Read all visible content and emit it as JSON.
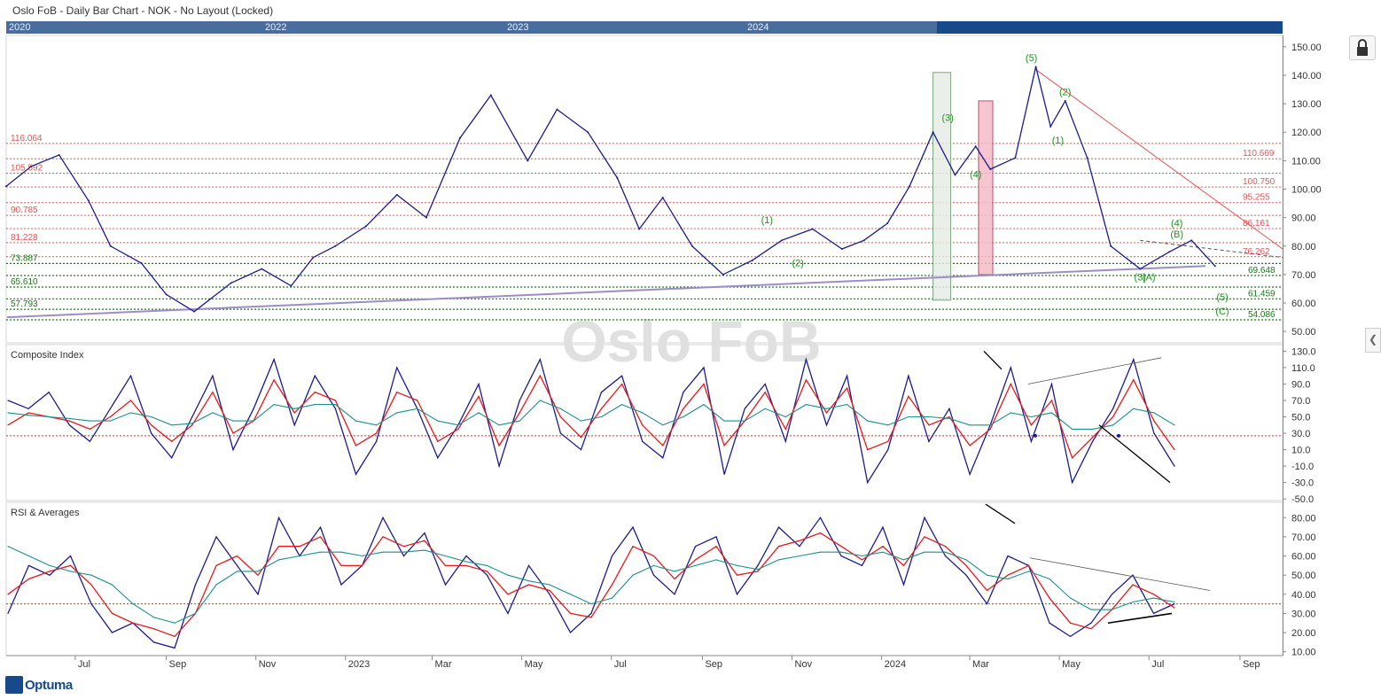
{
  "header": {
    "title": "Oslo FoB - Daily Bar Chart - NOK - No Layout (Locked)"
  },
  "navigator": {
    "years": [
      "2020",
      "2022",
      "2023",
      "2024"
    ]
  },
  "watermark": "Oslo FoB",
  "logo": "Optuma",
  "icons": {
    "lock": "lock-icon",
    "collapse": "chevron-left-icon"
  },
  "colors": {
    "price": "#1c1c8c",
    "signal_red": "#e8191b",
    "signal_teal": "#1a8f8f",
    "res_red": "#e85555",
    "sup_green": "#1a7a1a",
    "trend_purple": "#9c8cc8"
  },
  "chart_data": [
    {
      "type": "line",
      "name": "price",
      "x_ticks": [
        "Jul",
        "Sep",
        "Nov",
        "2023",
        "Mar",
        "May",
        "Jul",
        "Sep",
        "Nov",
        "2024",
        "Mar",
        "May",
        "Jul",
        "Sep"
      ],
      "y_ticks": [
        "150.00",
        "140.00",
        "130.00",
        "120.00",
        "110.00",
        "100.00",
        "90.00",
        "80.00",
        "70.00",
        "60.00",
        "50.00"
      ],
      "ylim": [
        46,
        154
      ],
      "x": [
        "2022-05-15",
        "2022-06-01",
        "2022-06-20",
        "2022-07-10",
        "2022-07-25",
        "2022-08-15",
        "2022-09-01",
        "2022-09-20",
        "2022-10-15",
        "2022-11-05",
        "2022-11-25",
        "2022-12-10",
        "2022-12-25",
        "2023-01-15",
        "2023-02-05",
        "2023-02-25",
        "2023-03-20",
        "2023-04-10",
        "2023-05-05",
        "2023-05-25",
        "2023-06-15",
        "2023-07-05",
        "2023-07-20",
        "2023-08-05",
        "2023-08-25",
        "2023-09-15",
        "2023-10-05",
        "2023-10-25",
        "2023-11-15",
        "2023-12-05",
        "2023-12-20",
        "2024-01-05",
        "2024-01-20",
        "2024-02-05",
        "2024-02-20",
        "2024-03-05",
        "2024-03-15",
        "2024-04-01",
        "2024-04-15",
        "2024-04-25",
        "2024-05-05",
        "2024-05-20",
        "2024-06-05",
        "2024-06-25",
        "2024-07-15",
        "2024-07-30",
        "2024-08-15"
      ],
      "y": [
        101,
        108,
        112,
        96,
        80,
        74,
        63,
        57,
        67,
        72,
        66,
        76,
        80,
        87,
        98,
        90,
        118,
        133,
        110,
        128,
        120,
        104,
        86,
        97,
        80,
        70,
        75,
        82,
        86,
        79,
        82,
        88,
        101,
        120,
        105,
        115,
        107,
        111,
        143,
        122,
        131,
        111,
        80,
        72,
        78,
        82,
        73
      ],
      "levels_red": [
        {
          "value": 116.064,
          "label": "116.064"
        },
        {
          "value": 110.669,
          "label": "110.669"
        },
        {
          "value": 105.592,
          "label": "105.592"
        },
        {
          "value": 100.75,
          "label": "100.750"
        },
        {
          "value": 95.255,
          "label": "95.255"
        },
        {
          "value": 90.785,
          "label": "90.785"
        },
        {
          "value": 86.161,
          "label": "86.161"
        },
        {
          "value": 81.228,
          "label": "81.228"
        },
        {
          "value": 76.262,
          "label": "76.262"
        }
      ],
      "levels_green": [
        {
          "value": 73.887,
          "label": "73.887"
        },
        {
          "value": 69.648,
          "label": "69.648"
        },
        {
          "value": 65.61,
          "label": "65.610"
        },
        {
          "value": 61.459,
          "label": "61.459"
        },
        {
          "value": 57.793,
          "label": "57.793"
        },
        {
          "value": 54.086,
          "label": "54.086"
        }
      ],
      "wave_labels": [
        {
          "text": "(1)",
          "x": "2023-10-15",
          "y": 88
        },
        {
          "text": "(2)",
          "x": "2023-11-05",
          "y": 73
        },
        {
          "text": "(3)",
          "x": "2024-02-15",
          "y": 124
        },
        {
          "text": "(4)",
          "x": "2024-03-05",
          "y": 104
        },
        {
          "text": "(5)",
          "x": "2024-04-12",
          "y": 145
        },
        {
          "text": "(1)",
          "x": "2024-04-30",
          "y": 116
        },
        {
          "text": "(2)",
          "x": "2024-05-05",
          "y": 133
        },
        {
          "text": "(3)",
          "x": "2024-06-25",
          "y": 68
        },
        {
          "text": "(A)",
          "x": "2024-07-01",
          "y": 68
        },
        {
          "text": "(4)",
          "x": "2024-07-20",
          "y": 87
        },
        {
          "text": "(B)",
          "x": "2024-07-20",
          "y": 83
        },
        {
          "text": "(5)",
          "x": "2024-08-20",
          "y": 61
        },
        {
          "text": "(C)",
          "x": "2024-08-20",
          "y": 56
        }
      ]
    },
    {
      "type": "line",
      "name": "Composite Index",
      "title": "Composite Index",
      "y_ticks": [
        "130.0",
        "110.0",
        "90.0",
        "70.0",
        "50.0",
        "30.0",
        "10.0",
        "-10.0",
        "-30.0",
        "-50.0"
      ],
      "ylim": [
        -52,
        138
      ],
      "reference": 27,
      "series": [
        {
          "name": "",
          "values": [
            70,
            60,
            80,
            40,
            20,
            60,
            100,
            30,
            0,
            50,
            100,
            10,
            60,
            120,
            40,
            100,
            60,
            -20,
            20,
            110,
            60,
            0,
            40,
            90,
            -10,
            70,
            120,
            30,
            10,
            80,
            100,
            20,
            0,
            80,
            110,
            -20,
            60,
            90,
            20,
            120,
            40,
            100,
            -30,
            10,
            100,
            20,
            60,
            -20,
            40,
            110,
            20,
            90,
            -30,
            20,
            60,
            120,
            30,
            -10
          ]
        },
        {
          "name": "",
          "values": [
            40,
            55,
            50,
            45,
            35,
            50,
            70,
            40,
            20,
            40,
            80,
            30,
            45,
            95,
            55,
            80,
            70,
            15,
            30,
            80,
            70,
            20,
            35,
            75,
            15,
            55,
            100,
            50,
            25,
            60,
            90,
            40,
            15,
            60,
            90,
            15,
            45,
            80,
            35,
            95,
            55,
            85,
            10,
            20,
            75,
            40,
            50,
            15,
            35,
            90,
            40,
            70,
            0,
            25,
            50,
            95,
            45,
            10
          ]
        },
        {
          "name": "",
          "values": [
            55,
            52,
            50,
            48,
            45,
            45,
            55,
            50,
            40,
            42,
            55,
            45,
            45,
            65,
            60,
            65,
            65,
            45,
            40,
            55,
            60,
            45,
            40,
            55,
            40,
            45,
            70,
            60,
            45,
            50,
            65,
            55,
            40,
            50,
            65,
            45,
            45,
            60,
            50,
            65,
            60,
            65,
            45,
            40,
            50,
            50,
            48,
            40,
            40,
            55,
            50,
            55,
            35,
            35,
            40,
            60,
            55,
            40
          ]
        }
      ]
    },
    {
      "type": "line",
      "name": "RSI & Averages",
      "title": "RSI & Averages",
      "y_ticks": [
        "80.00",
        "70.00",
        "60.00",
        "50.00",
        "40.00",
        "30.00",
        "20.00",
        "10.00"
      ],
      "ylim": [
        8,
        88
      ],
      "reference": 35,
      "series": [
        {
          "name": "",
          "values": [
            30,
            55,
            50,
            60,
            35,
            20,
            25,
            15,
            12,
            45,
            70,
            55,
            40,
            80,
            60,
            75,
            45,
            55,
            80,
            60,
            72,
            45,
            60,
            50,
            30,
            55,
            40,
            20,
            30,
            60,
            75,
            50,
            40,
            65,
            70,
            40,
            55,
            75,
            65,
            80,
            60,
            55,
            75,
            45,
            80,
            60,
            50,
            35,
            60,
            55,
            25,
            18,
            25,
            40,
            50,
            30,
            35
          ]
        },
        {
          "name": "",
          "values": [
            40,
            48,
            52,
            55,
            45,
            30,
            25,
            22,
            18,
            30,
            55,
            60,
            50,
            65,
            65,
            70,
            55,
            55,
            70,
            65,
            68,
            55,
            55,
            52,
            40,
            45,
            42,
            30,
            28,
            45,
            65,
            60,
            48,
            58,
            65,
            50,
            52,
            65,
            68,
            72,
            65,
            58,
            65,
            55,
            70,
            65,
            55,
            42,
            50,
            55,
            38,
            25,
            22,
            32,
            45,
            40,
            33
          ]
        },
        {
          "name": "",
          "values": [
            65,
            60,
            55,
            52,
            50,
            45,
            35,
            28,
            25,
            30,
            45,
            52,
            52,
            58,
            60,
            62,
            62,
            60,
            62,
            62,
            63,
            60,
            57,
            55,
            50,
            47,
            45,
            40,
            35,
            38,
            50,
            55,
            52,
            55,
            58,
            55,
            53,
            58,
            60,
            62,
            62,
            60,
            62,
            58,
            62,
            62,
            58,
            50,
            48,
            52,
            48,
            38,
            32,
            32,
            36,
            38,
            36
          ]
        }
      ]
    }
  ]
}
